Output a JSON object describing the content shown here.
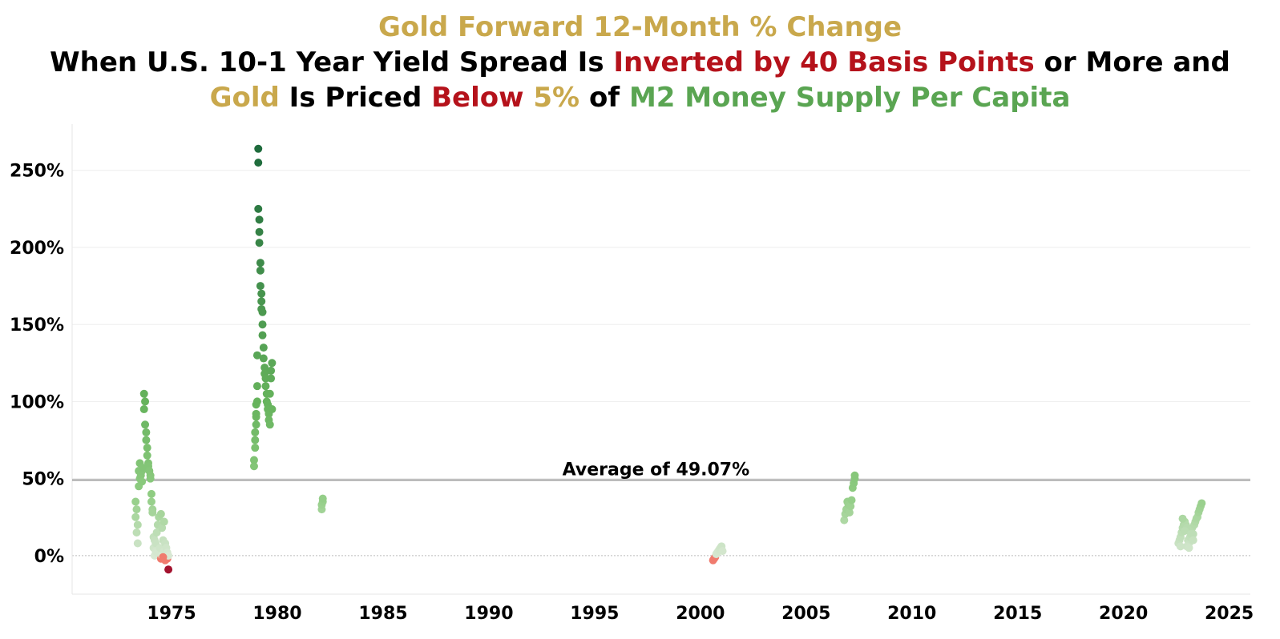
{
  "title": {
    "line1": "Gold Forward 12-Month % Change",
    "line2": [
      {
        "text": "When U.S. 10-1 Year Yield Spread Is ",
        "color": "#000000"
      },
      {
        "text": "Inverted by 40 Basis Points",
        "color": "#b5121b"
      },
      {
        "text": " or More and",
        "color": "#000000"
      }
    ],
    "line3": [
      {
        "text": "Gold",
        "color": "#c9a84c"
      },
      {
        "text": " Is Priced ",
        "color": "#000000"
      },
      {
        "text": "Below",
        "color": "#b5121b"
      },
      {
        "text": " 5%",
        "color": "#c9a84c"
      },
      {
        "text": " of ",
        "color": "#000000"
      },
      {
        "text": "M2 Money Supply Per Capita",
        "color": "#5aa552"
      }
    ]
  },
  "chart_data": {
    "type": "scatter",
    "title": "Gold Forward 12-Month % Change",
    "xlim": [
      1970.3,
      2026.0
    ],
    "ylim": [
      -25,
      280
    ],
    "x_ticks": [
      1975,
      1980,
      1985,
      1990,
      1995,
      2000,
      2005,
      2010,
      2015,
      2020,
      2025
    ],
    "y_ticks": [
      0,
      50,
      100,
      150,
      200,
      250
    ],
    "y_tick_labels": [
      "0%",
      "50%",
      "100%",
      "150%",
      "200%",
      "250%"
    ],
    "average": {
      "value": 49.07,
      "label": "Average of 49.07%"
    },
    "color_scale": {
      "negative": "#f07b6e",
      "deep_negative": "#a3122e",
      "low": "#d8e8d3",
      "mid": "#66b35c",
      "high": "#1e6b3c"
    },
    "series": [
      {
        "x": [
          1973.3,
          1973.3,
          1973.35,
          1973.35,
          1973.4,
          1973.4,
          1973.45,
          1973.45,
          1973.5,
          1973.5,
          1973.55,
          1973.6,
          1973.6,
          1973.65,
          1973.7,
          1973.7,
          1973.75,
          1973.75,
          1973.8,
          1973.8,
          1973.85,
          1973.85,
          1973.9,
          1973.9,
          1973.95,
          1974.0,
          1974.0,
          1974.05,
          1974.05,
          1974.1,
          1974.1,
          1974.15,
          1974.15,
          1974.2,
          1974.2,
          1974.25,
          1974.25,
          1974.3,
          1974.3,
          1974.35,
          1974.4,
          1974.45,
          1974.5,
          1974.5,
          1974.55,
          1974.55,
          1974.6,
          1974.6,
          1974.65,
          1974.65,
          1974.7,
          1974.7,
          1974.75,
          1974.75,
          1974.8,
          1974.8,
          1974.85,
          1974.6,
          1974.85
        ],
        "y": [
          35,
          25,
          30,
          15,
          20,
          8,
          55,
          45,
          60,
          50,
          52,
          55,
          48,
          57,
          105,
          95,
          100,
          85,
          80,
          75,
          70,
          65,
          60,
          58,
          55,
          52,
          50,
          40,
          35,
          30,
          28,
          12,
          5,
          10,
          0,
          8,
          3,
          15,
          2,
          20,
          25,
          5,
          27,
          -2,
          18,
          0,
          -1,
          10,
          22,
          3,
          -3,
          8,
          5,
          0,
          2,
          -2,
          0,
          -1,
          -9
        ]
      },
      {
        "x": [
          1978.9,
          1978.9,
          1978.95,
          1978.95,
          1979.0,
          1979.0,
          1979.0,
          1979.05,
          1979.05,
          1979.1,
          1979.1,
          1979.1,
          1979.15,
          1979.15,
          1979.15,
          1979.2,
          1979.2,
          1979.2,
          1979.25,
          1979.25,
          1979.25,
          1979.3,
          1979.3,
          1979.3,
          1979.35,
          1979.35,
          1979.4,
          1979.4,
          1979.45,
          1979.45,
          1979.5,
          1979.5,
          1979.55,
          1979.55,
          1979.6,
          1979.6,
          1979.65,
          1979.65,
          1979.7,
          1979.7,
          1979.75,
          1979.75,
          1978.95,
          1979.0,
          1979.05
        ],
        "y": [
          58,
          62,
          70,
          80,
          85,
          90,
          98,
          100,
          110,
          264,
          255,
          225,
          218,
          210,
          203,
          190,
          185,
          175,
          170,
          165,
          160,
          158,
          150,
          143,
          135,
          128,
          122,
          118,
          115,
          110,
          105,
          100,
          98,
          95,
          92,
          88,
          85,
          105,
          115,
          120,
          125,
          95,
          75,
          92,
          130
        ]
      },
      {
        "x": [
          1982.1,
          1982.1,
          1982.15,
          1982.15
        ],
        "y": [
          30,
          33,
          35,
          37
        ]
      },
      {
        "x": [
          2000.6,
          2000.65,
          2000.7,
          2000.75,
          2000.8,
          2000.85,
          2000.9,
          2000.95,
          2001.0,
          2001.05
        ],
        "y": [
          -3,
          -2,
          -1,
          1,
          2,
          3,
          4,
          5,
          6,
          3
        ]
      },
      {
        "x": [
          2006.8,
          2006.85,
          2006.9,
          2006.95,
          2007.0,
          2007.05,
          2007.1,
          2007.15,
          2007.2,
          2007.25,
          2007.3,
          2007.3
        ],
        "y": [
          23,
          27,
          30,
          35,
          33,
          28,
          32,
          36,
          44,
          47,
          50,
          52
        ]
      },
      {
        "x": [
          2022.6,
          2022.65,
          2022.7,
          2022.75,
          2022.8,
          2022.85,
          2022.9,
          2022.95,
          2023.0,
          2023.05,
          2023.1,
          2023.15,
          2023.2,
          2023.25,
          2023.3,
          2023.35,
          2023.4,
          2023.45,
          2023.5,
          2023.55,
          2023.6,
          2023.65,
          2023.7,
          2022.7,
          2022.8,
          2022.9,
          2023.0,
          2023.1,
          2023.2,
          2023.3
        ],
        "y": [
          8,
          10,
          12,
          15,
          18,
          20,
          22,
          20,
          18,
          10,
          8,
          12,
          15,
          18,
          14,
          20,
          22,
          24,
          25,
          28,
          30,
          32,
          34,
          6,
          24,
          16,
          6,
          5,
          14,
          10
        ]
      }
    ]
  }
}
